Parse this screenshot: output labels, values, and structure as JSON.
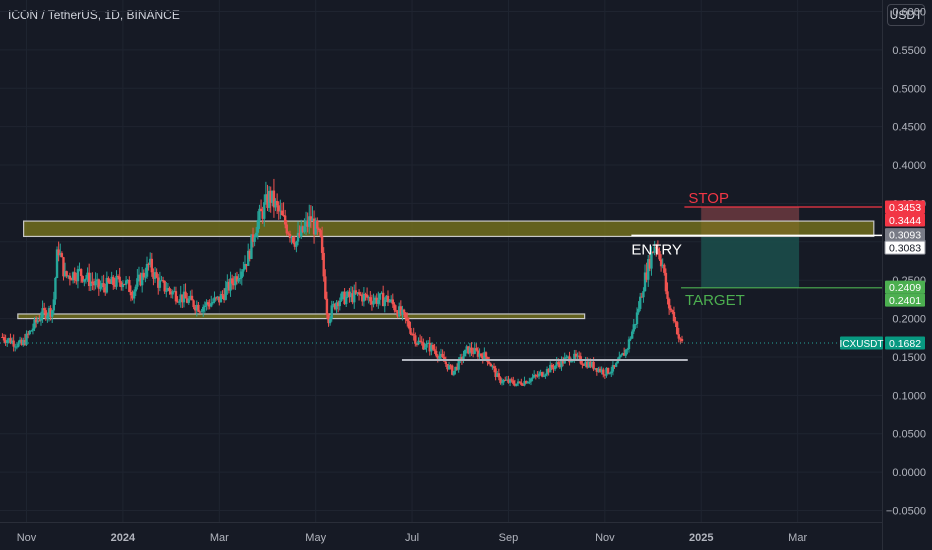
{
  "header": {
    "title": "ICON / TetherUS, 1D, BINANCE",
    "unit_button": "USDT"
  },
  "colors": {
    "background": "#161a25",
    "grid": "#1f2430",
    "axis_text": "#b2b5be",
    "up_candle": "#26a69a",
    "down_candle": "#ef5350",
    "zone_fill": "#7d7a1c",
    "stop_color": "#f23645",
    "target_color": "#4caf50",
    "entry_color": "#ffffff",
    "profit_zone": "#1b4d4a",
    "loss_zone": "#6b3a3f",
    "price_badge": "#089981"
  },
  "chart_data": {
    "type": "candlestick",
    "symbol": "ICXUSDT",
    "y_ticks": [
      "0.6000",
      "0.5500",
      "0.5000",
      "0.4500",
      "0.4000",
      "0.3500",
      "0.3000",
      "0.2500",
      "0.2000",
      "0.1500",
      "0.1000",
      "0.0500",
      "0.0000",
      "−0.0500"
    ],
    "y_tick_values": [
      0.6,
      0.55,
      0.5,
      0.45,
      0.4,
      0.35,
      0.3,
      0.25,
      0.2,
      0.15,
      0.1,
      0.05,
      0.0,
      -0.05
    ],
    "x_ticks": [
      "Nov",
      "2024",
      "Mar",
      "May",
      "Jul",
      "Sep",
      "Nov",
      "2025",
      "Mar"
    ],
    "x_tick_months": [
      0,
      2,
      4,
      6,
      8,
      10,
      12,
      14,
      16
    ],
    "ylim": [
      -0.065,
      0.615
    ],
    "xlim_months": [
      -0.55,
      17.75
    ],
    "last_price": 0.1682,
    "last_price_label": "ICXUSDT",
    "last_price_text": "0.1682",
    "price_path": [
      [
        -0.5,
        0.176
      ],
      [
        -0.1,
        0.165
      ],
      [
        0.3,
        0.205
      ],
      [
        0.55,
        0.212
      ],
      [
        0.65,
        0.295
      ],
      [
        0.8,
        0.255
      ],
      [
        1.1,
        0.26
      ],
      [
        1.5,
        0.24
      ],
      [
        2.0,
        0.25
      ],
      [
        2.2,
        0.235
      ],
      [
        2.55,
        0.27
      ],
      [
        2.75,
        0.245
      ],
      [
        3.0,
        0.235
      ],
      [
        3.3,
        0.225
      ],
      [
        3.6,
        0.215
      ],
      [
        4.0,
        0.225
      ],
      [
        4.3,
        0.25
      ],
      [
        4.6,
        0.28
      ],
      [
        4.75,
        0.32
      ],
      [
        5.05,
        0.36
      ],
      [
        5.3,
        0.33
      ],
      [
        5.6,
        0.3
      ],
      [
        5.9,
        0.33
      ],
      [
        6.1,
        0.3
      ],
      [
        6.25,
        0.2
      ],
      [
        6.45,
        0.225
      ],
      [
        6.9,
        0.23
      ],
      [
        7.2,
        0.225
      ],
      [
        7.5,
        0.225
      ],
      [
        7.85,
        0.2
      ],
      [
        8.1,
        0.17
      ],
      [
        8.45,
        0.16
      ],
      [
        8.85,
        0.13
      ],
      [
        9.15,
        0.16
      ],
      [
        9.55,
        0.15
      ],
      [
        9.8,
        0.12
      ],
      [
        10.2,
        0.115
      ],
      [
        10.6,
        0.125
      ],
      [
        11.0,
        0.14
      ],
      [
        11.3,
        0.15
      ],
      [
        11.7,
        0.14
      ],
      [
        12.0,
        0.13
      ],
      [
        12.2,
        0.135
      ],
      [
        12.45,
        0.16
      ],
      [
        12.65,
        0.2
      ],
      [
        12.8,
        0.245
      ],
      [
        12.95,
        0.28
      ],
      [
        13.05,
        0.3
      ],
      [
        13.2,
        0.27
      ],
      [
        13.3,
        0.22
      ],
      [
        13.45,
        0.2
      ],
      [
        13.55,
        0.17
      ],
      [
        13.62,
        0.1682
      ]
    ],
    "annotations": {
      "zones": [
        {
          "name": "upper-zone",
          "y_low": 0.307,
          "y_high": 0.327,
          "x_start": -0.06,
          "x_end": 17.58
        },
        {
          "name": "lower-zone",
          "y_low": 0.2,
          "y_high": 0.206,
          "x_start": -0.18,
          "x_end": 11.58
        }
      ],
      "support_line": {
        "y": 0.146,
        "x_start": 7.79,
        "x_end": 13.72
      },
      "entry_line": {
        "y": 0.3083,
        "x_start": 12.55,
        "x_end": 17.75
      },
      "stop_line": {
        "y": 0.3453,
        "x_start": 13.65,
        "x_end": 17.75
      },
      "target_line": {
        "y": 0.2401,
        "x_start": 13.58,
        "x_end": 17.75
      },
      "position_box": {
        "x_start": 14.0,
        "x_end": 16.03,
        "entry": 0.3083,
        "stop": 0.3453,
        "target": 0.2401
      }
    },
    "labels": {
      "stop": "STOP",
      "entry": "ENTRY",
      "target": "TARGET"
    },
    "axis_badges": [
      {
        "text": "0.3453",
        "value": 0.3453,
        "style": "stop"
      },
      {
        "text": "0.3444",
        "value": 0.3444,
        "style": "stop"
      },
      {
        "text": "0.3093",
        "value": 0.3093,
        "style": "zone"
      },
      {
        "text": "0.3083",
        "value": 0.3083,
        "style": "entry"
      },
      {
        "text": "0.2409",
        "value": 0.2409,
        "style": "target"
      },
      {
        "text": "0.2401",
        "value": 0.2401,
        "style": "target"
      },
      {
        "text": "0.1682",
        "value": 0.1682,
        "style": "price"
      }
    ]
  }
}
